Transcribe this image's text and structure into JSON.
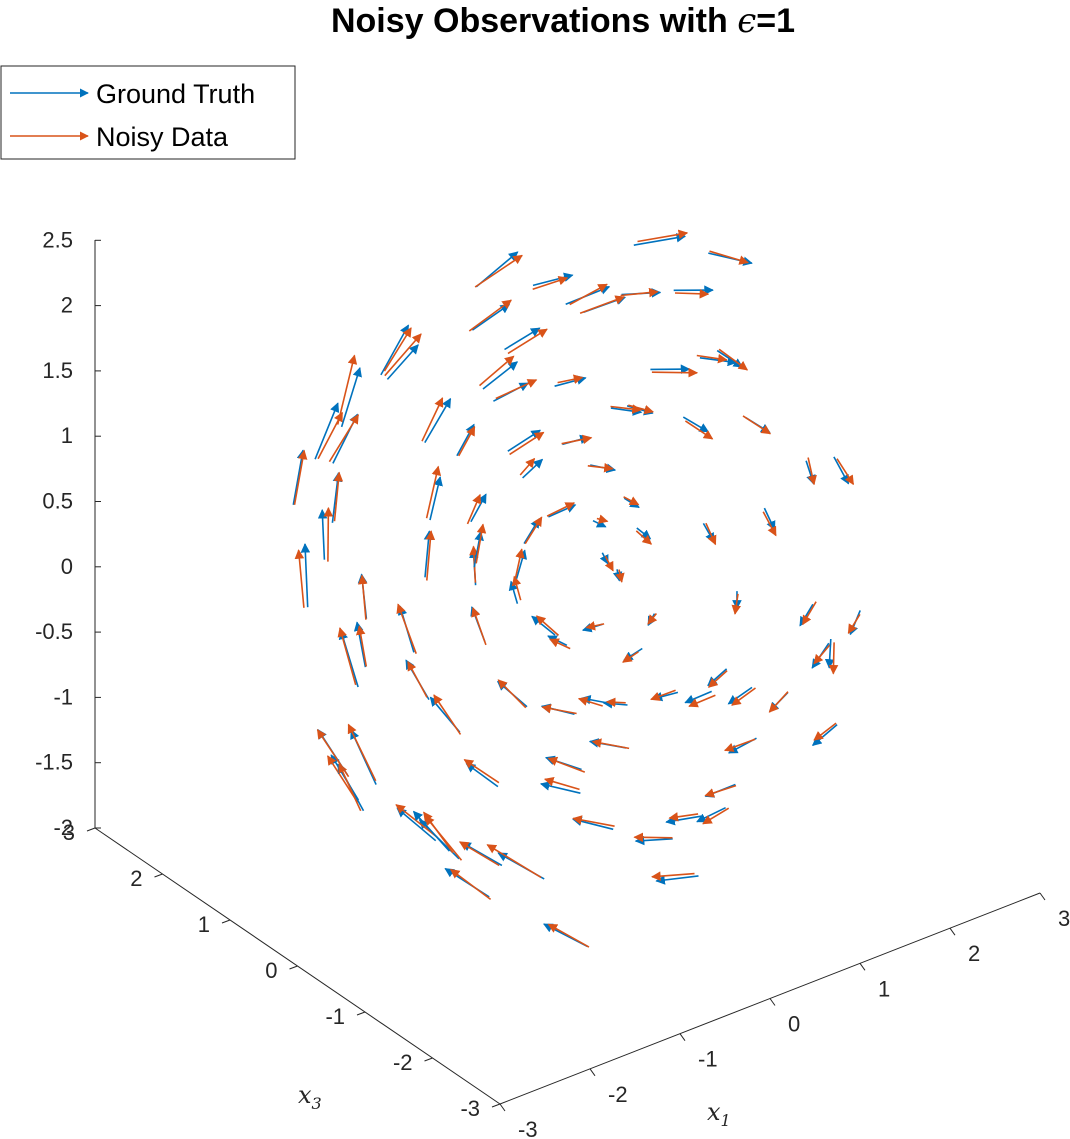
{
  "chart_data": {
    "type": "quiver3d",
    "title_prefix": "Noisy Observations with ",
    "title_symbol": "ϵ",
    "title_suffix": "=1",
    "xlabel": "x",
    "xlabel_sub": "1",
    "ylabel": "x",
    "ylabel_sub": "3",
    "x_ticks": [
      "-3",
      "-2",
      "-1",
      "0",
      "1",
      "2",
      "3"
    ],
    "y_ticks": [
      "-3",
      "-2",
      "-1",
      "0",
      "1",
      "2",
      "3"
    ],
    "z_ticks": [
      "-2",
      "-1.5",
      "-1",
      "-0.5",
      "0",
      "0.5",
      "1",
      "1.5",
      "2",
      "2.5"
    ],
    "legend": {
      "location": "top-left",
      "entries": [
        {
          "label": "Ground Truth",
          "color": "#0072BD"
        },
        {
          "label": "Noisy Data",
          "color": "#D95319"
        }
      ]
    },
    "colors": {
      "ground_truth": "#0072BD",
      "noisy": "#D95319",
      "axis": "#262626"
    }
  }
}
